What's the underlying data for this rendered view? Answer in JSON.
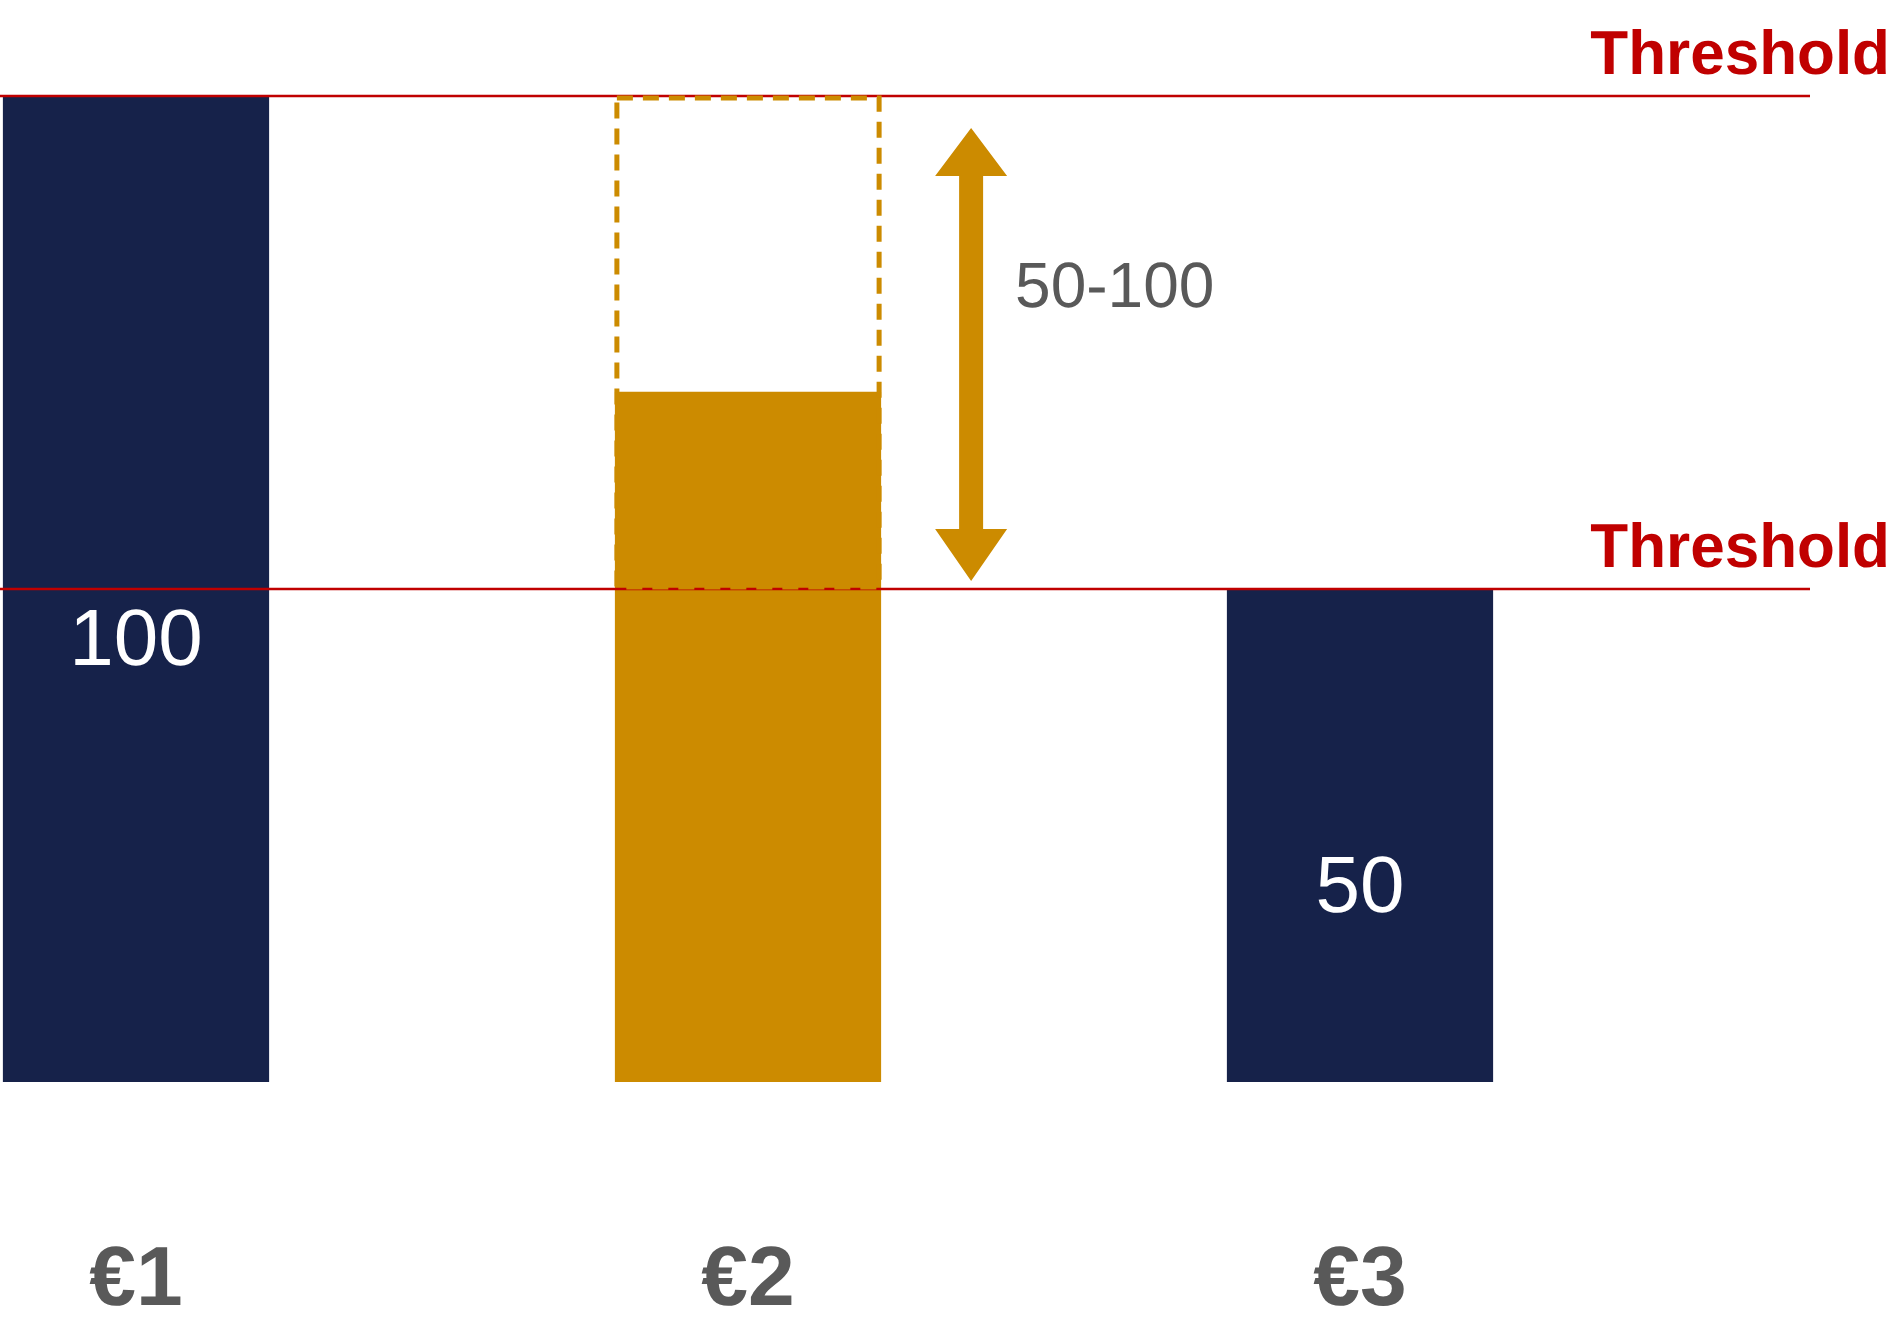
{
  "chart_data": {
    "type": "bar",
    "categories": [
      "€1",
      "€2",
      "€3"
    ],
    "values": [
      100,
      70,
      50
    ],
    "colors": [
      "#16224a",
      "#cc8b00",
      "#16224a"
    ],
    "ylim": [
      0,
      100
    ],
    "tick_labels": "x",
    "value_labels": [
      "100",
      null,
      "50"
    ],
    "ref_lines": [
      {
        "axis": "y",
        "value": 100,
        "label": "Threshold",
        "color": "#c00000"
      },
      {
        "axis": "y",
        "value": 50,
        "label": "Threshold",
        "color": "#c00000"
      }
    ],
    "annotations": [
      "50-100"
    ]
  }
}
